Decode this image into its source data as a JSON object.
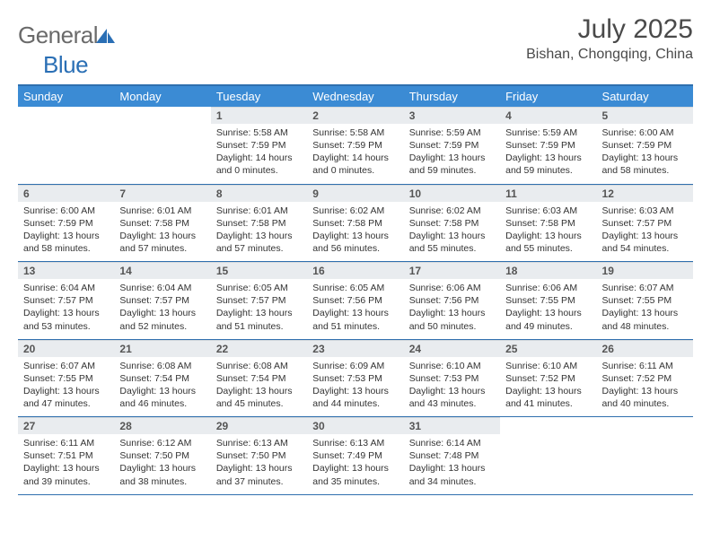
{
  "brand": {
    "part1": "General",
    "part2": "Blue"
  },
  "title": "July 2025",
  "location": "Bishan, Chongqing, China",
  "colors": {
    "header_bg": "#3b8bd4",
    "divider": "#2f6fae",
    "daynum_bg": "#e9ecef",
    "text": "#333333",
    "logo_gray": "#6a6a6a",
    "logo_blue": "#2a6fb5"
  },
  "day_labels": [
    "Sunday",
    "Monday",
    "Tuesday",
    "Wednesday",
    "Thursday",
    "Friday",
    "Saturday"
  ],
  "weeks": [
    [
      null,
      null,
      {
        "n": "1",
        "sr": "Sunrise: 5:58 AM",
        "ss": "Sunset: 7:59 PM",
        "dl": "Daylight: 14 hours and 0 minutes."
      },
      {
        "n": "2",
        "sr": "Sunrise: 5:58 AM",
        "ss": "Sunset: 7:59 PM",
        "dl": "Daylight: 14 hours and 0 minutes."
      },
      {
        "n": "3",
        "sr": "Sunrise: 5:59 AM",
        "ss": "Sunset: 7:59 PM",
        "dl": "Daylight: 13 hours and 59 minutes."
      },
      {
        "n": "4",
        "sr": "Sunrise: 5:59 AM",
        "ss": "Sunset: 7:59 PM",
        "dl": "Daylight: 13 hours and 59 minutes."
      },
      {
        "n": "5",
        "sr": "Sunrise: 6:00 AM",
        "ss": "Sunset: 7:59 PM",
        "dl": "Daylight: 13 hours and 58 minutes."
      }
    ],
    [
      {
        "n": "6",
        "sr": "Sunrise: 6:00 AM",
        "ss": "Sunset: 7:59 PM",
        "dl": "Daylight: 13 hours and 58 minutes."
      },
      {
        "n": "7",
        "sr": "Sunrise: 6:01 AM",
        "ss": "Sunset: 7:58 PM",
        "dl": "Daylight: 13 hours and 57 minutes."
      },
      {
        "n": "8",
        "sr": "Sunrise: 6:01 AM",
        "ss": "Sunset: 7:58 PM",
        "dl": "Daylight: 13 hours and 57 minutes."
      },
      {
        "n": "9",
        "sr": "Sunrise: 6:02 AM",
        "ss": "Sunset: 7:58 PM",
        "dl": "Daylight: 13 hours and 56 minutes."
      },
      {
        "n": "10",
        "sr": "Sunrise: 6:02 AM",
        "ss": "Sunset: 7:58 PM",
        "dl": "Daylight: 13 hours and 55 minutes."
      },
      {
        "n": "11",
        "sr": "Sunrise: 6:03 AM",
        "ss": "Sunset: 7:58 PM",
        "dl": "Daylight: 13 hours and 55 minutes."
      },
      {
        "n": "12",
        "sr": "Sunrise: 6:03 AM",
        "ss": "Sunset: 7:57 PM",
        "dl": "Daylight: 13 hours and 54 minutes."
      }
    ],
    [
      {
        "n": "13",
        "sr": "Sunrise: 6:04 AM",
        "ss": "Sunset: 7:57 PM",
        "dl": "Daylight: 13 hours and 53 minutes."
      },
      {
        "n": "14",
        "sr": "Sunrise: 6:04 AM",
        "ss": "Sunset: 7:57 PM",
        "dl": "Daylight: 13 hours and 52 minutes."
      },
      {
        "n": "15",
        "sr": "Sunrise: 6:05 AM",
        "ss": "Sunset: 7:57 PM",
        "dl": "Daylight: 13 hours and 51 minutes."
      },
      {
        "n": "16",
        "sr": "Sunrise: 6:05 AM",
        "ss": "Sunset: 7:56 PM",
        "dl": "Daylight: 13 hours and 51 minutes."
      },
      {
        "n": "17",
        "sr": "Sunrise: 6:06 AM",
        "ss": "Sunset: 7:56 PM",
        "dl": "Daylight: 13 hours and 50 minutes."
      },
      {
        "n": "18",
        "sr": "Sunrise: 6:06 AM",
        "ss": "Sunset: 7:55 PM",
        "dl": "Daylight: 13 hours and 49 minutes."
      },
      {
        "n": "19",
        "sr": "Sunrise: 6:07 AM",
        "ss": "Sunset: 7:55 PM",
        "dl": "Daylight: 13 hours and 48 minutes."
      }
    ],
    [
      {
        "n": "20",
        "sr": "Sunrise: 6:07 AM",
        "ss": "Sunset: 7:55 PM",
        "dl": "Daylight: 13 hours and 47 minutes."
      },
      {
        "n": "21",
        "sr": "Sunrise: 6:08 AM",
        "ss": "Sunset: 7:54 PM",
        "dl": "Daylight: 13 hours and 46 minutes."
      },
      {
        "n": "22",
        "sr": "Sunrise: 6:08 AM",
        "ss": "Sunset: 7:54 PM",
        "dl": "Daylight: 13 hours and 45 minutes."
      },
      {
        "n": "23",
        "sr": "Sunrise: 6:09 AM",
        "ss": "Sunset: 7:53 PM",
        "dl": "Daylight: 13 hours and 44 minutes."
      },
      {
        "n": "24",
        "sr": "Sunrise: 6:10 AM",
        "ss": "Sunset: 7:53 PM",
        "dl": "Daylight: 13 hours and 43 minutes."
      },
      {
        "n": "25",
        "sr": "Sunrise: 6:10 AM",
        "ss": "Sunset: 7:52 PM",
        "dl": "Daylight: 13 hours and 41 minutes."
      },
      {
        "n": "26",
        "sr": "Sunrise: 6:11 AM",
        "ss": "Sunset: 7:52 PM",
        "dl": "Daylight: 13 hours and 40 minutes."
      }
    ],
    [
      {
        "n": "27",
        "sr": "Sunrise: 6:11 AM",
        "ss": "Sunset: 7:51 PM",
        "dl": "Daylight: 13 hours and 39 minutes."
      },
      {
        "n": "28",
        "sr": "Sunrise: 6:12 AM",
        "ss": "Sunset: 7:50 PM",
        "dl": "Daylight: 13 hours and 38 minutes."
      },
      {
        "n": "29",
        "sr": "Sunrise: 6:13 AM",
        "ss": "Sunset: 7:50 PM",
        "dl": "Daylight: 13 hours and 37 minutes."
      },
      {
        "n": "30",
        "sr": "Sunrise: 6:13 AM",
        "ss": "Sunset: 7:49 PM",
        "dl": "Daylight: 13 hours and 35 minutes."
      },
      {
        "n": "31",
        "sr": "Sunrise: 6:14 AM",
        "ss": "Sunset: 7:48 PM",
        "dl": "Daylight: 13 hours and 34 minutes."
      },
      null,
      null
    ]
  ]
}
